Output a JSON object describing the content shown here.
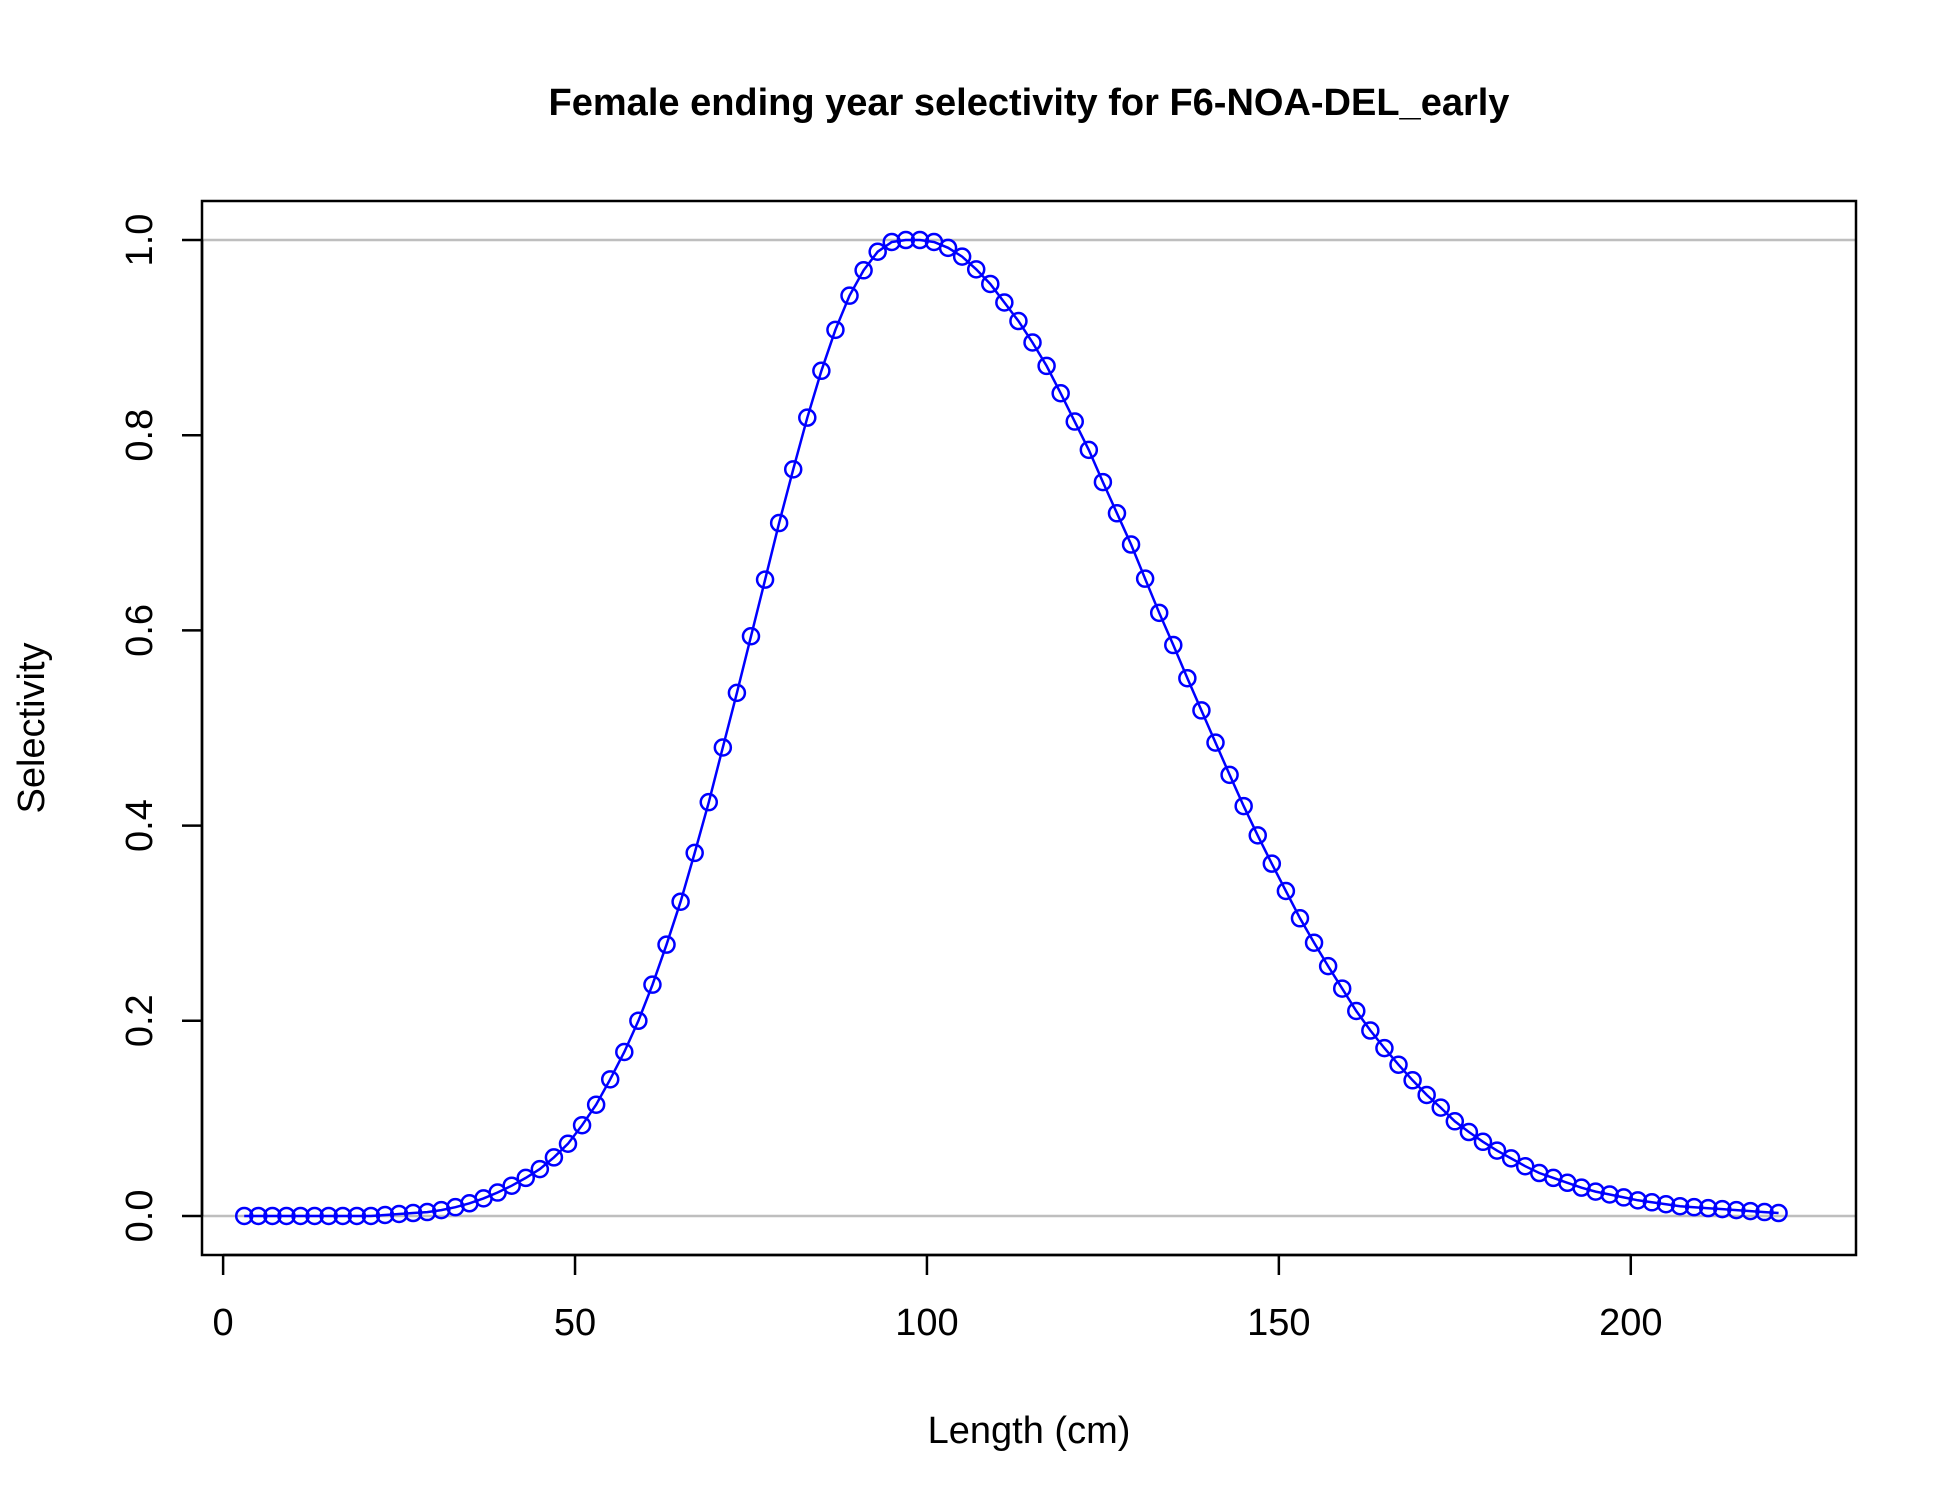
{
  "chart_data": {
    "type": "line",
    "title": "Female ending year selectivity for F6-NOA-DEL_early",
    "xlabel": "Length (cm)",
    "ylabel": "Selectivity",
    "xlim": [
      -3,
      232
    ],
    "ylim": [
      -0.04,
      1.04
    ],
    "x_ticks": [
      "0",
      "50",
      "100",
      "150",
      "200"
    ],
    "y_ticks": [
      "0.0",
      "0.2",
      "0.4",
      "0.6",
      "0.8",
      "1.0"
    ],
    "reference_lines": [
      0,
      1
    ],
    "grid": false,
    "legend": "none",
    "colors": {
      "series": "#0000ff",
      "reference": "#bebebe",
      "axis": "#000000"
    },
    "series": [
      {
        "x": [
          3,
          5,
          7,
          9,
          11,
          13,
          15,
          17,
          19,
          21,
          23,
          25,
          27,
          29,
          31,
          33,
          35,
          37,
          39,
          41,
          43,
          45,
          47,
          49,
          51,
          53,
          55,
          57,
          59,
          61,
          63,
          65,
          67,
          69,
          71,
          73,
          75,
          77,
          79,
          81,
          83,
          85,
          87,
          89,
          91,
          93,
          95,
          97,
          99,
          101,
          103,
          105,
          107,
          109,
          111,
          113,
          115,
          117,
          119,
          121,
          123,
          125,
          127,
          129,
          131,
          133,
          135,
          137,
          139,
          141,
          143,
          145,
          147,
          149,
          151,
          153,
          155,
          157,
          159,
          161,
          163,
          165,
          167,
          169,
          171,
          173,
          175,
          177,
          179,
          181,
          183,
          185,
          187,
          189,
          191,
          193,
          195,
          197,
          199,
          201,
          203,
          205,
          207,
          209,
          211,
          213,
          215,
          217,
          219,
          221
        ],
        "y": [
          0.0,
          0.0,
          0.0,
          0.0,
          0.0,
          0.0,
          0.0,
          0.0,
          0.0,
          0.0,
          0.001,
          0.002,
          0.003,
          0.004,
          0.006,
          0.009,
          0.013,
          0.018,
          0.024,
          0.031,
          0.039,
          0.048,
          0.06,
          0.074,
          0.093,
          0.114,
          0.14,
          0.168,
          0.2,
          0.237,
          0.278,
          0.322,
          0.372,
          0.424,
          0.48,
          0.536,
          0.594,
          0.652,
          0.71,
          0.765,
          0.818,
          0.866,
          0.908,
          0.943,
          0.969,
          0.988,
          0.998,
          1.0,
          1.0,
          0.998,
          0.992,
          0.983,
          0.97,
          0.955,
          0.936,
          0.917,
          0.895,
          0.871,
          0.843,
          0.814,
          0.785,
          0.752,
          0.72,
          0.688,
          0.653,
          0.618,
          0.585,
          0.551,
          0.518,
          0.485,
          0.452,
          0.42,
          0.39,
          0.361,
          0.333,
          0.305,
          0.28,
          0.256,
          0.233,
          0.21,
          0.19,
          0.172,
          0.155,
          0.139,
          0.124,
          0.111,
          0.097,
          0.086,
          0.076,
          0.067,
          0.059,
          0.051,
          0.044,
          0.039,
          0.034,
          0.029,
          0.025,
          0.022,
          0.019,
          0.016,
          0.014,
          0.012,
          0.01,
          0.009,
          0.008,
          0.007,
          0.006,
          0.005,
          0.004,
          0.003
        ]
      }
    ]
  }
}
